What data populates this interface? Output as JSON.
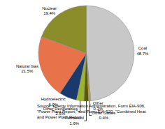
{
  "chart_data": {
    "type": "pie",
    "categories": [
      "Coal",
      "Nuclear",
      "Natural Gas",
      "Hydroelectric",
      "Other Renewables",
      "Petroleum",
      "Other Gases",
      "Other"
    ],
    "values": [
      48.7,
      19.4,
      21.5,
      6.0,
      2.5,
      1.6,
      0.4,
      0.3
    ],
    "value_labels": [
      "48.7%",
      "19.4%",
      "21.5%",
      "6.0%",
      "2.5%",
      "1.6%",
      "0.4%",
      "0.3%"
    ],
    "colors": [
      "#c8c8c8",
      "#8b8c2a",
      "#e8734a",
      "#1a3a6e",
      "#9ab52a",
      "#5a5a00",
      "#c89400",
      "#c8b87a"
    ],
    "data_labels": true,
    "annotations": [
      "Source: Energy Information Administration, Form EIA-906,\n“Power Plant Report;” and Form EIA-920, “Combined Heat\nand Power Plant Report.”"
    ]
  }
}
